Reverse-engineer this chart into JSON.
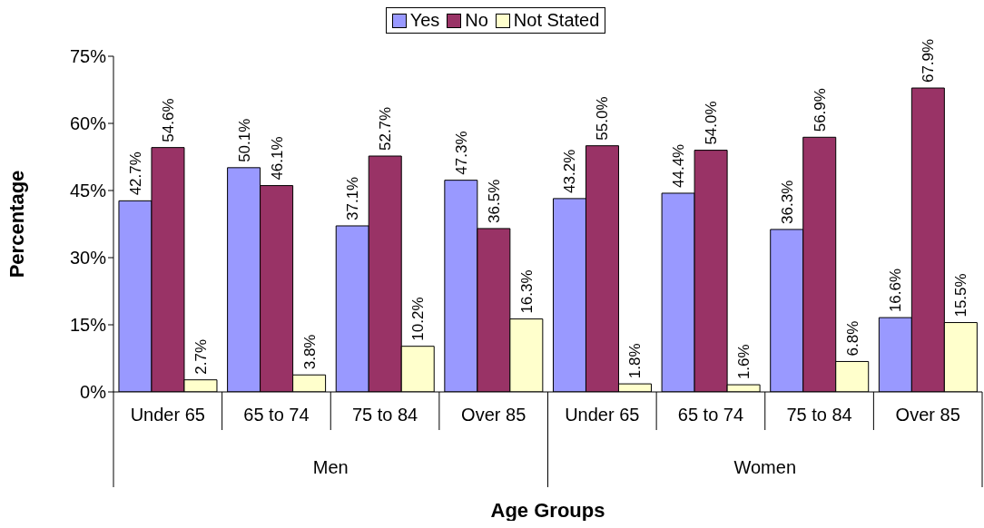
{
  "chart_data": {
    "type": "bar",
    "xlabel": "Age Groups",
    "ylabel": "Percentage",
    "categories": [
      "Under 65",
      "65 to 74",
      "75 to 84",
      "Over 85",
      "Under 65",
      "65 to 74",
      "75 to 84",
      "Over 85"
    ],
    "annotations": [
      "Men",
      "Women"
    ],
    "series": [
      {
        "name": "Yes",
        "color": "#9999ff",
        "values": [
          42.7,
          50.1,
          37.1,
          47.3,
          43.2,
          44.4,
          36.3,
          16.6
        ],
        "value_labels": [
          "42.7%",
          "50.1%",
          "37.1%",
          "47.3%",
          "43.2%",
          "44.4%",
          "36.3%",
          "16.6%"
        ]
      },
      {
        "name": "No",
        "color": "#993366",
        "values": [
          54.6,
          46.1,
          52.7,
          36.5,
          55.0,
          54.0,
          56.9,
          67.9
        ],
        "value_labels": [
          "54.6%",
          "46.1%",
          "52.7%",
          "36.5%",
          "55.0%",
          "54.0%",
          "56.9%",
          "67.9%"
        ]
      },
      {
        "name": "Not Stated",
        "color": "#ffffcc",
        "values": [
          2.7,
          3.8,
          10.2,
          16.3,
          1.8,
          1.6,
          6.8,
          15.5
        ],
        "value_labels": [
          "2.7%",
          "3.8%",
          "10.2%",
          "16.3%",
          "1.8%",
          "1.6%",
          "6.8%",
          "15.5%"
        ]
      }
    ],
    "ylim": [
      0,
      75
    ],
    "yticks": [
      {
        "value": 0,
        "label": "0%"
      },
      {
        "value": 15,
        "label": "15%"
      },
      {
        "value": 30,
        "label": "30%"
      },
      {
        "value": 45,
        "label": "45%"
      },
      {
        "value": 60,
        "label": "60%"
      },
      {
        "value": 75,
        "label": "75%"
      }
    ],
    "grid": false,
    "legend": "top"
  }
}
